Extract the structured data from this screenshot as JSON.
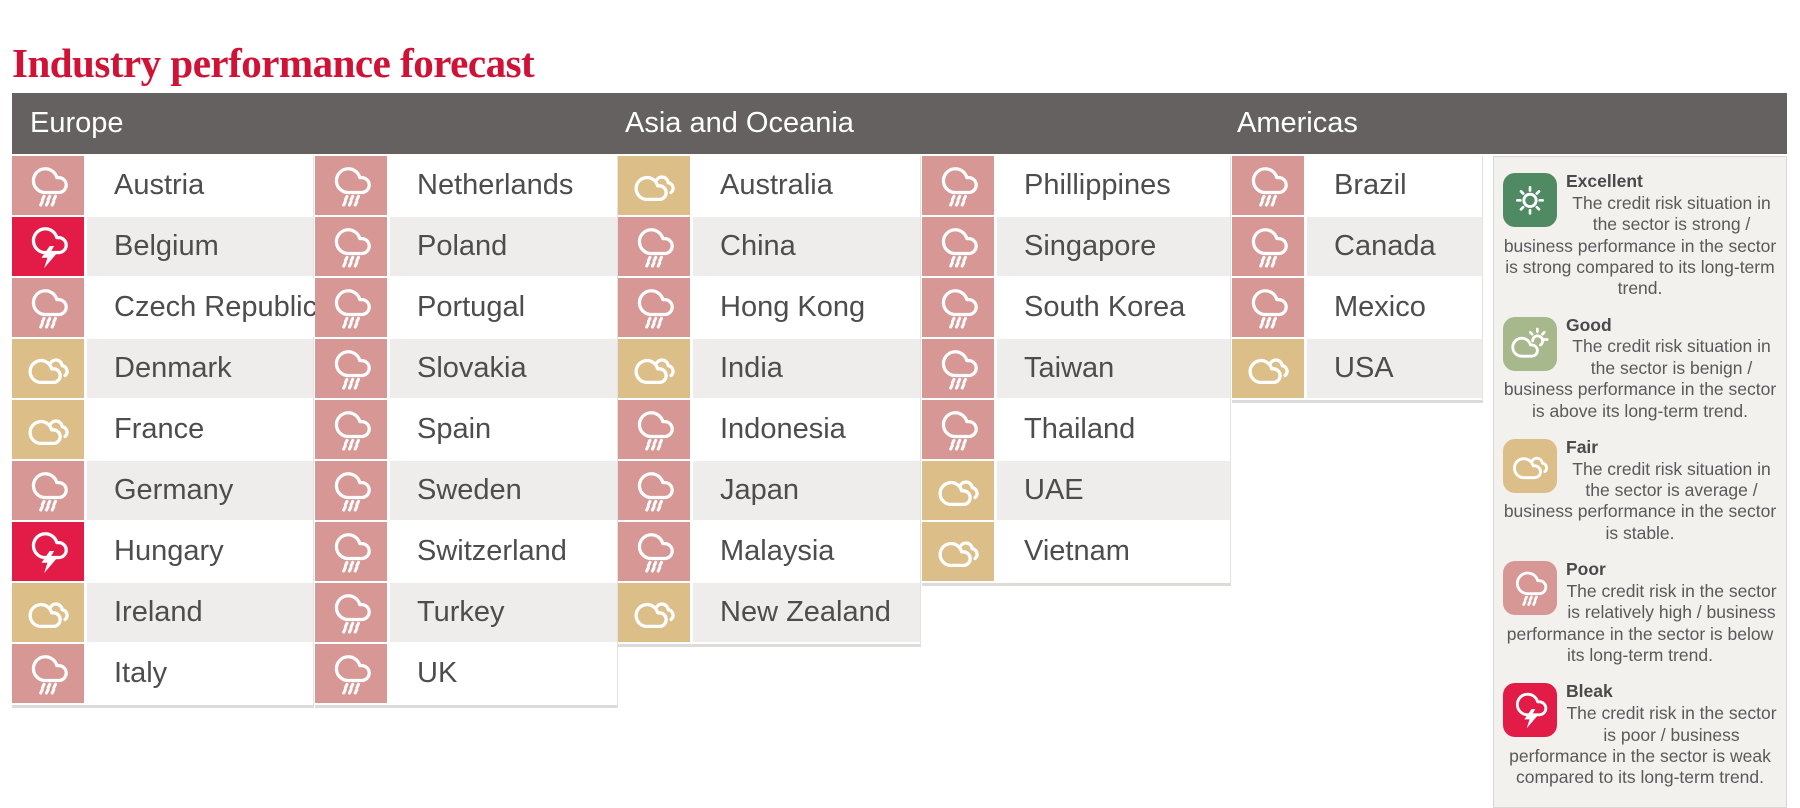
{
  "title": "Industry performance forecast",
  "colors": {
    "excellent": "#4f8a63",
    "good": "#a7b88c",
    "fair": "#dcbe89",
    "poor": "#d69795",
    "bleak": "#e21c47",
    "header_bar": "#666161",
    "row_stripe": "#eeedeb",
    "title": "#d01236",
    "label_text": "#4d4d4d"
  },
  "chart_data": {
    "type": "table",
    "title": "Industry performance forecast",
    "legend_position": "right",
    "rating_scale": [
      "Excellent",
      "Good",
      "Fair",
      "Poor",
      "Bleak"
    ],
    "groups": [
      {
        "region": "Europe",
        "columns": [
          [
            {
              "country": "Austria",
              "rating": "poor"
            },
            {
              "country": "Belgium",
              "rating": "bleak"
            },
            {
              "country": "Czech Republic",
              "rating": "poor"
            },
            {
              "country": "Denmark",
              "rating": "fair"
            },
            {
              "country": "France",
              "rating": "fair"
            },
            {
              "country": "Germany",
              "rating": "poor"
            },
            {
              "country": "Hungary",
              "rating": "bleak"
            },
            {
              "country": "Ireland",
              "rating": "fair"
            },
            {
              "country": "Italy",
              "rating": "poor"
            }
          ],
          [
            {
              "country": "Netherlands",
              "rating": "poor"
            },
            {
              "country": "Poland",
              "rating": "poor"
            },
            {
              "country": "Portugal",
              "rating": "poor"
            },
            {
              "country": "Slovakia",
              "rating": "poor"
            },
            {
              "country": "Spain",
              "rating": "poor"
            },
            {
              "country": "Sweden",
              "rating": "poor"
            },
            {
              "country": "Switzerland",
              "rating": "poor"
            },
            {
              "country": "Turkey",
              "rating": "poor"
            },
            {
              "country": "UK",
              "rating": "poor"
            }
          ]
        ]
      },
      {
        "region": "Asia and Oceania",
        "columns": [
          [
            {
              "country": "Australia",
              "rating": "fair"
            },
            {
              "country": "China",
              "rating": "poor"
            },
            {
              "country": "Hong Kong",
              "rating": "poor"
            },
            {
              "country": "India",
              "rating": "fair"
            },
            {
              "country": "Indonesia",
              "rating": "poor"
            },
            {
              "country": "Japan",
              "rating": "poor"
            },
            {
              "country": "Malaysia",
              "rating": "poor"
            },
            {
              "country": "New Zealand",
              "rating": "fair"
            }
          ],
          [
            {
              "country": "Phillippines",
              "rating": "poor"
            },
            {
              "country": "Singapore",
              "rating": "poor"
            },
            {
              "country": "South Korea",
              "rating": "poor"
            },
            {
              "country": "Taiwan",
              "rating": "poor"
            },
            {
              "country": "Thailand",
              "rating": "poor"
            },
            {
              "country": "UAE",
              "rating": "fair"
            },
            {
              "country": "Vietnam",
              "rating": "fair"
            }
          ]
        ]
      },
      {
        "region": "Americas",
        "columns": [
          [
            {
              "country": "Brazil",
              "rating": "poor"
            },
            {
              "country": "Canada",
              "rating": "poor"
            },
            {
              "country": "Mexico",
              "rating": "poor"
            },
            {
              "country": "USA",
              "rating": "fair"
            }
          ]
        ]
      }
    ],
    "legend": [
      {
        "rating": "excellent",
        "label": "Excellent",
        "text": "The credit risk situation in the sector is strong / business performance in the sector is strong compared to its long-term trend."
      },
      {
        "rating": "good",
        "label": "Good",
        "text": "The credit risk situation in the sector is benign / business performance in the sector is above its long-term trend."
      },
      {
        "rating": "fair",
        "label": "Fair",
        "text": "The credit risk situation in the sector is average / business performance in the sector is stable."
      },
      {
        "rating": "poor",
        "label": "Poor",
        "text": "The credit risk in the sector is relatively high / business performance in the sector is below its long-term trend."
      },
      {
        "rating": "bleak",
        "label": "Bleak",
        "text": "The credit risk in the sector is poor / business performance in the sector is weak compared to its long-term trend."
      }
    ]
  }
}
